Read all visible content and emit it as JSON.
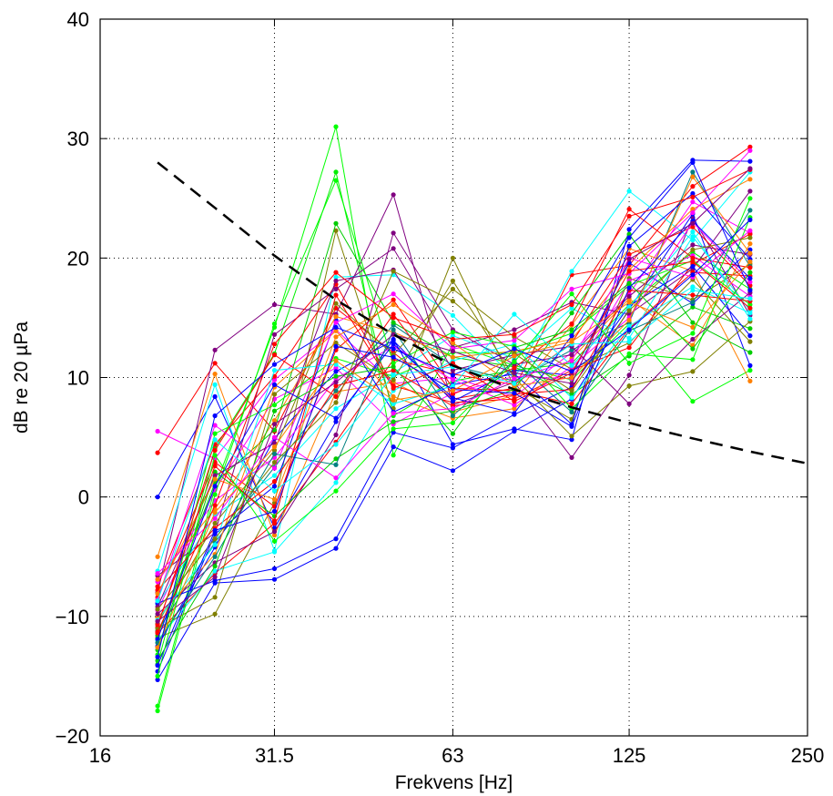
{
  "chart_data": {
    "type": "line",
    "title": "",
    "xlabel": "Frekvens [Hz]",
    "ylabel": "dB re 20 µPa",
    "xscale": "log",
    "xlim": [
      16,
      250
    ],
    "ylim": [
      -20,
      40
    ],
    "xticks": [
      16,
      31.5,
      63,
      125,
      250
    ],
    "xtick_labels": [
      "16",
      "31.5",
      "63",
      "125",
      "250"
    ],
    "yticks": [
      -20,
      -10,
      0,
      10,
      20,
      30,
      40
    ],
    "ytick_labels": [
      "−20",
      "−10",
      "0",
      "10",
      "20",
      "30",
      "40"
    ],
    "grid": true,
    "legend": "none",
    "x": [
      20,
      25,
      31.5,
      40,
      50,
      63,
      80,
      100,
      125,
      160,
      200
    ],
    "series": [
      {
        "color": "#ff0000",
        "values": [
          3.7,
          11.2,
          5.5,
          15.8,
          12.1,
          8.2,
          9.1,
          18.6,
          19.4,
          26.0,
          29.3
        ]
      },
      {
        "color": "#ff00ff",
        "values": [
          5.5,
          3.2,
          9.8,
          14.0,
          9.5,
          10.0,
          8.4,
          12.1,
          17.0,
          24.7,
          22.1
        ]
      },
      {
        "color": "#0000ff",
        "values": [
          0.0,
          8.4,
          -2.6,
          6.3,
          13.2,
          4.4,
          5.7,
          4.8,
          22.4,
          28.2,
          28.1
        ]
      },
      {
        "color": "#00ff00",
        "values": [
          -17.5,
          0.8,
          14.2,
          31.0,
          3.5,
          12.8,
          11.0,
          9.8,
          14.5,
          8.0,
          10.6
        ]
      },
      {
        "color": "#00ee00",
        "values": [
          -14.0,
          4.1,
          12.0,
          27.2,
          6.8,
          9.7,
          10.6,
          11.2,
          16.1,
          20.5,
          17.4
        ]
      },
      {
        "color": "#808000",
        "values": [
          -11.8,
          -9.8,
          -0.5,
          22.3,
          7.4,
          20.0,
          9.2,
          6.5,
          18.3,
          16.5,
          19.5
        ]
      },
      {
        "color": "#800080",
        "values": [
          -8.0,
          12.3,
          16.1,
          15.3,
          25.3,
          7.7,
          9.6,
          3.3,
          10.2,
          23.4,
          15.2
        ]
      },
      {
        "color": "#00ffff",
        "values": [
          -6.2,
          9.4,
          -4.5,
          18.4,
          18.6,
          15.2,
          9.9,
          18.9,
          25.6,
          21.5,
          27.2
        ]
      },
      {
        "color": "#ff8000",
        "values": [
          -5.0,
          10.3,
          -3.2,
          8.8,
          9.6,
          7.1,
          8.5,
          14.4,
          20.8,
          18.9,
          9.7
        ]
      },
      {
        "color": "#0000ff",
        "values": [
          -15.3,
          -7.2,
          -6.9,
          -4.3,
          4.2,
          2.2,
          5.5,
          8.2,
          15.7,
          23.7,
          11.0
        ]
      },
      {
        "color": "#ff0000",
        "values": [
          -7.5,
          4.4,
          10.1,
          17.8,
          9.3,
          7.9,
          8.2,
          10.6,
          12.5,
          19.5,
          22.0
        ]
      },
      {
        "color": "#008080",
        "values": [
          -11.2,
          -3.8,
          2.5,
          8.9,
          14.4,
          11.0,
          9.7,
          12.3,
          14.6,
          27.2,
          19.3
        ]
      },
      {
        "color": "#ff00ff",
        "values": [
          -9.5,
          0.6,
          8.2,
          10.8,
          6.1,
          8.7,
          10.1,
          9.9,
          18.1,
          20.2,
          16.8
        ]
      },
      {
        "color": "#00cc00",
        "values": [
          -11.6,
          1.2,
          5.6,
          22.9,
          14.6,
          11.7,
          10.9,
          8.6,
          11.8,
          15.9,
          14.1
        ]
      },
      {
        "color": "#800080",
        "values": [
          -6.6,
          -3.0,
          13.6,
          17.4,
          20.8,
          12.5,
          14.0,
          16.3,
          15.3,
          19.1,
          25.6
        ]
      },
      {
        "color": "#ff0000",
        "values": [
          -8.4,
          2.9,
          -0.8,
          12.3,
          16.5,
          9.1,
          8.9,
          7.8,
          14.1,
          18.8,
          18.5
        ]
      },
      {
        "color": "#0000ff",
        "values": [
          -12.5,
          -4.2,
          4.9,
          10.5,
          13.1,
          8.0,
          10.6,
          10.2,
          19.6,
          16.2,
          20.7
        ]
      },
      {
        "color": "#00ffff",
        "values": [
          -9.0,
          -1.5,
          1.8,
          7.4,
          10.4,
          13.5,
          11.6,
          15.8,
          13.3,
          21.8,
          15.6
        ]
      },
      {
        "color": "#ff8000",
        "values": [
          -10.1,
          -4.8,
          9.2,
          13.9,
          8.4,
          6.6,
          7.4,
          11.6,
          16.6,
          12.7,
          21.2
        ]
      },
      {
        "color": "#808000",
        "values": [
          -10.6,
          -2.2,
          3.9,
          16.2,
          11.9,
          17.4,
          13.4,
          10.7,
          12.9,
          18.2,
          13.0
        ]
      },
      {
        "color": "#ff0000",
        "values": [
          -11.4,
          -6.4,
          -2.2,
          4.6,
          11.5,
          10.3,
          9.4,
          12.9,
          20.3,
          22.6,
          17.7
        ]
      },
      {
        "color": "#00ff00",
        "values": [
          -13.2,
          5.3,
          7.7,
          11.6,
          10.1,
          12.1,
          12.0,
          13.7,
          17.7,
          19.8,
          16.1
        ]
      },
      {
        "color": "#0000ff",
        "values": [
          -14.6,
          -3.1,
          0.9,
          14.8,
          7.1,
          9.4,
          10.3,
          6.1,
          21.0,
          25.4,
          19.9
        ]
      },
      {
        "color": "#ff00ff",
        "values": [
          -7.1,
          -0.3,
          3.3,
          9.9,
          12.6,
          9.8,
          7.7,
          10.9,
          15.0,
          23.0,
          18.0
        ]
      },
      {
        "color": "#800080",
        "values": [
          -9.8,
          -5.5,
          -2.9,
          5.2,
          22.1,
          14.0,
          11.1,
          11.9,
          16.8,
          21.1,
          20.3
        ]
      },
      {
        "color": "#00ffff",
        "values": [
          -12.0,
          -6.2,
          -4.6,
          1.2,
          8.9,
          11.4,
          12.8,
          8.3,
          14.3,
          17.6,
          15.4
        ]
      },
      {
        "color": "#ff0000",
        "values": [
          -10.9,
          3.9,
          11.9,
          8.4,
          15.3,
          8.6,
          10.8,
          14.5,
          24.1,
          20.0,
          19.2
        ]
      },
      {
        "color": "#ff8000",
        "values": [
          -6.9,
          -1.0,
          6.4,
          15.1,
          13.8,
          11.7,
          12.2,
          13.2,
          19.0,
          24.1,
          26.6
        ]
      },
      {
        "color": "#00cc00",
        "values": [
          -12.8,
          2.1,
          -1.6,
          3.2,
          6.3,
          7.2,
          9.0,
          15.4,
          22.0,
          14.6,
          12.1
        ]
      },
      {
        "color": "#808000",
        "values": [
          -11.0,
          -8.4,
          8.6,
          12.9,
          9.8,
          18.1,
          10.0,
          5.1,
          9.3,
          10.5,
          14.7
        ]
      },
      {
        "color": "#0000ff",
        "values": [
          -8.9,
          -7.0,
          -6.0,
          -3.5,
          5.4,
          4.1,
          6.9,
          9.2,
          16.0,
          19.3,
          13.5
        ]
      },
      {
        "color": "#ff00ff",
        "values": [
          -8.6,
          6.0,
          2.4,
          14.6,
          17.0,
          12.4,
          13.1,
          17.4,
          18.7,
          23.8,
          29.0
        ]
      },
      {
        "color": "#ff0000",
        "values": [
          -7.8,
          -2.6,
          1.3,
          9.3,
          10.6,
          7.6,
          8.6,
          9.0,
          17.3,
          16.9,
          16.4
        ]
      },
      {
        "color": "#00ff00",
        "values": [
          -17.9,
          0.2,
          14.5,
          26.5,
          11.2,
          13.8,
          12.6,
          7.4,
          12.0,
          11.5,
          23.4
        ]
      },
      {
        "color": "#800080",
        "values": [
          -9.2,
          1.8,
          4.5,
          18.1,
          19.0,
          10.6,
          11.9,
          12.6,
          7.8,
          13.2,
          17.1
        ]
      },
      {
        "color": "#00ffff",
        "values": [
          -10.3,
          -4.0,
          10.6,
          11.1,
          7.8,
          9.3,
          15.3,
          11.0,
          15.9,
          22.2,
          14.9
        ]
      },
      {
        "color": "#ff8000",
        "values": [
          -8.1,
          1.5,
          -0.2,
          13.4,
          16.1,
          12.9,
          9.3,
          10.0,
          14.8,
          26.8,
          20.4
        ]
      },
      {
        "color": "#0000ff",
        "values": [
          -11.9,
          0.9,
          9.4,
          6.6,
          12.8,
          8.3,
          7.0,
          13.5,
          21.7,
          28.0,
          17.3
        ]
      },
      {
        "color": "#008080",
        "values": [
          -12.2,
          -5.0,
          3.6,
          2.7,
          14.0,
          6.8,
          11.4,
          7.1,
          13.9,
          16.3,
          24.0
        ]
      },
      {
        "color": "#ff0000",
        "values": [
          -10.7,
          2.6,
          -2.0,
          16.9,
          9.1,
          11.2,
          8.0,
          10.4,
          18.9,
          19.7,
          15.8
        ]
      },
      {
        "color": "#00cc00",
        "values": [
          -13.7,
          -5.8,
          7.2,
          10.1,
          10.9,
          5.3,
          12.5,
          14.0,
          17.9,
          12.4,
          18.8
        ]
      },
      {
        "color": "#808000",
        "values": [
          -9.4,
          -3.5,
          2.9,
          7.9,
          18.9,
          16.4,
          12.0,
          8.9,
          15.6,
          20.7,
          21.7
        ]
      },
      {
        "color": "#ff00ff",
        "values": [
          -6.4,
          -1.8,
          5.0,
          1.6,
          7.0,
          7.4,
          9.9,
          11.4,
          20.0,
          18.4,
          22.3
        ]
      },
      {
        "color": "#0000ff",
        "values": [
          -14.1,
          -2.8,
          -1.2,
          12.6,
          11.7,
          9.0,
          8.7,
          5.9,
          17.5,
          23.1,
          18.3
        ]
      },
      {
        "color": "#ff0000",
        "values": [
          -11.3,
          -0.7,
          12.8,
          18.8,
          15.0,
          13.2,
          13.6,
          16.1,
          23.5,
          25.1,
          27.4
        ]
      },
      {
        "color": "#00ffff",
        "values": [
          -8.7,
          4.8,
          0.5,
          4.4,
          10.2,
          10.9,
          9.5,
          12.8,
          13.0,
          17.3,
          16.6
        ]
      },
      {
        "color": "#800080",
        "values": [
          -10.4,
          -6.7,
          6.1,
          9.6,
          13.6,
          12.2,
          10.4,
          9.5,
          19.9,
          22.9,
          27.5
        ]
      },
      {
        "color": "#ff8000",
        "values": [
          -12.6,
          -1.3,
          4.2,
          11.4,
          8.1,
          8.9,
          11.8,
          13.0,
          16.3,
          14.2,
          19.7
        ]
      },
      {
        "color": "#00ff00",
        "values": [
          -15.0,
          3.5,
          -3.7,
          0.5,
          5.7,
          6.2,
          11.3,
          17.0,
          11.2,
          13.7,
          25.0
        ]
      },
      {
        "color": "#0000ff",
        "values": [
          -13.4,
          6.8,
          11.1,
          14.2,
          12.4,
          10.2,
          12.4,
          10.5,
          14.0,
          18.6,
          23.2
        ]
      }
    ],
    "reference_curve": {
      "style": "dashed",
      "color": "#000000",
      "x": [
        20,
        25,
        31.5,
        40,
        50,
        63,
        80,
        100,
        125,
        160,
        200,
        250
      ],
      "values": [
        28.0,
        24.2,
        20.2,
        16.5,
        13.6,
        11.0,
        9.0,
        7.5,
        6.2,
        4.9,
        3.8,
        2.8
      ]
    }
  }
}
